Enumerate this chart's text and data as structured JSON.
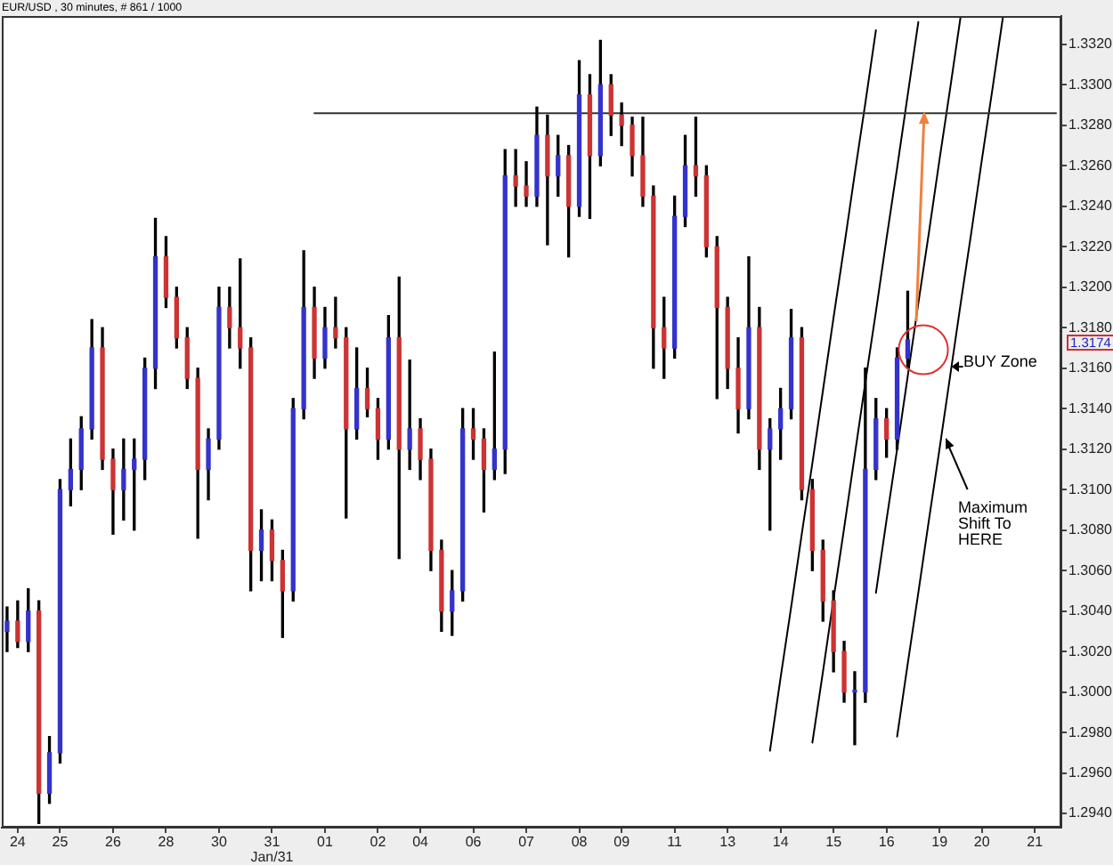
{
  "chart_data": {
    "type": "candlestick",
    "title": "EUR/USD , 30 minutes, # 861 / 1000",
    "annotations": [
      "BUY Zone",
      "Maximum Shift To HERE",
      "1.3174"
    ],
    "categories": [
      null,
      "24",
      null,
      null,
      null,
      "25",
      null,
      null,
      null,
      null,
      "26",
      null,
      null,
      null,
      null,
      "28",
      null,
      null,
      null,
      null,
      "30",
      null,
      null,
      null,
      null,
      "31\nJan/31",
      null,
      null,
      null,
      null,
      "01",
      null,
      null,
      null,
      null,
      "02",
      null,
      null,
      null,
      "04",
      null,
      null,
      null,
      null,
      "06",
      null,
      null,
      null,
      null,
      "07",
      null,
      null,
      null,
      null,
      "08",
      null,
      null,
      null,
      "09",
      null,
      null,
      null,
      null,
      "11",
      null,
      null,
      null,
      null,
      "13",
      null,
      null,
      null,
      null,
      "14",
      null,
      null,
      null,
      null,
      "15",
      null,
      null,
      null,
      null,
      "16",
      null,
      null,
      null,
      null,
      "19",
      null,
      null,
      null,
      "20",
      null,
      null,
      null,
      null,
      "21",
      null,
      null
    ],
    "ylim": [
      1.2933,
      1.3334
    ],
    "yticks": [
      {
        "value": 1.294,
        "label": "1.2940"
      },
      {
        "value": 1.296,
        "label": "1.2960"
      },
      {
        "value": 1.298,
        "label": "1.2980"
      },
      {
        "value": 1.3,
        "label": "1.3000"
      },
      {
        "value": 1.302,
        "label": "1.3020"
      },
      {
        "value": 1.304,
        "label": "1.3040"
      },
      {
        "value": 1.306,
        "label": "1.3060"
      },
      {
        "value": 1.308,
        "label": "1.3080"
      },
      {
        "value": 1.31,
        "label": "1.3100"
      },
      {
        "value": 1.312,
        "label": "1.3120"
      },
      {
        "value": 1.314,
        "label": "1.3140"
      },
      {
        "value": 1.316,
        "label": "1.3160"
      },
      {
        "value": 1.318,
        "label": "1.3180"
      },
      {
        "value": 1.32,
        "label": "1.3200"
      },
      {
        "value": 1.322,
        "label": "1.3220"
      },
      {
        "value": 1.324,
        "label": "1.3240"
      },
      {
        "value": 1.326,
        "label": "1.3260"
      },
      {
        "value": 1.328,
        "label": "1.3280"
      },
      {
        "value": 1.33,
        "label": "1.3300"
      },
      {
        "value": 1.332,
        "label": "1.3320"
      }
    ],
    "grid": false,
    "legend": false,
    "marker": "none",
    "line_style": "solid",
    "series": [
      {
        "color": "#000000",
        "ohlc": [
          [
            1.303,
            1.3042,
            1.302,
            1.3035
          ],
          [
            1.3035,
            1.3045,
            1.3022,
            1.3025
          ],
          [
            1.3025,
            1.3051,
            1.302,
            1.304
          ],
          [
            1.304,
            1.3045,
            1.2935,
            1.295
          ],
          [
            1.295,
            1.2978,
            1.2945,
            1.297
          ],
          [
            1.297,
            1.3105,
            1.2965,
            1.31
          ],
          [
            1.31,
            1.3125,
            1.3092,
            1.311
          ],
          [
            1.311,
            1.3136,
            1.31,
            1.313
          ],
          [
            1.313,
            1.3184,
            1.3125,
            1.317
          ],
          [
            1.317,
            1.318,
            1.311,
            1.3115
          ],
          [
            1.3115,
            1.312,
            1.3078,
            1.31
          ],
          [
            1.31,
            1.3125,
            1.3085,
            1.311
          ],
          [
            1.311,
            1.3125,
            1.308,
            1.3115
          ],
          [
            1.3115,
            1.3165,
            1.3105,
            1.316
          ],
          [
            1.316,
            1.3234,
            1.315,
            1.3215
          ],
          [
            1.3215,
            1.3225,
            1.319,
            1.3195
          ],
          [
            1.3195,
            1.32,
            1.317,
            1.3175
          ],
          [
            1.3175,
            1.318,
            1.315,
            1.3155
          ],
          [
            1.3155,
            1.316,
            1.3076,
            1.311
          ],
          [
            1.311,
            1.313,
            1.3095,
            1.3125
          ],
          [
            1.3125,
            1.32,
            1.312,
            1.319
          ],
          [
            1.319,
            1.32,
            1.317,
            1.318
          ],
          [
            1.318,
            1.3214,
            1.316,
            1.317
          ],
          [
            1.317,
            1.3175,
            1.305,
            1.307
          ],
          [
            1.307,
            1.309,
            1.3055,
            1.308
          ],
          [
            1.308,
            1.3085,
            1.3055,
            1.3065
          ],
          [
            1.3065,
            1.307,
            1.3027,
            1.305
          ],
          [
            1.305,
            1.3145,
            1.3045,
            1.314
          ],
          [
            1.314,
            1.3218,
            1.3135,
            1.319
          ],
          [
            1.319,
            1.32,
            1.3155,
            1.3165
          ],
          [
            1.3165,
            1.319,
            1.316,
            1.318
          ],
          [
            1.318,
            1.3195,
            1.317,
            1.3175
          ],
          [
            1.3175,
            1.318,
            1.3086,
            1.313
          ],
          [
            1.313,
            1.317,
            1.3125,
            1.315
          ],
          [
            1.315,
            1.316,
            1.3136,
            1.314
          ],
          [
            1.314,
            1.3145,
            1.3115,
            1.3125
          ],
          [
            1.3125,
            1.3186,
            1.312,
            1.3175
          ],
          [
            1.3175,
            1.3205,
            1.3066,
            1.312
          ],
          [
            1.312,
            1.3164,
            1.311,
            1.313
          ],
          [
            1.313,
            1.3135,
            1.3105,
            1.3115
          ],
          [
            1.3115,
            1.312,
            1.306,
            1.307
          ],
          [
            1.307,
            1.3075,
            1.303,
            1.304
          ],
          [
            1.304,
            1.306,
            1.3028,
            1.305
          ],
          [
            1.305,
            1.314,
            1.3045,
            1.313
          ],
          [
            1.313,
            1.314,
            1.3115,
            1.3125
          ],
          [
            1.3125,
            1.313,
            1.3089,
            1.311
          ],
          [
            1.311,
            1.3168,
            1.3105,
            1.312
          ],
          [
            1.312,
            1.3268,
            1.3108,
            1.3255
          ],
          [
            1.3255,
            1.3268,
            1.324,
            1.325
          ],
          [
            1.325,
            1.3262,
            1.324,
            1.3245
          ],
          [
            1.3245,
            1.3289,
            1.324,
            1.3275
          ],
          [
            1.3275,
            1.3285,
            1.3221,
            1.3255
          ],
          [
            1.3255,
            1.3275,
            1.3245,
            1.3265
          ],
          [
            1.3265,
            1.327,
            1.3215,
            1.324
          ],
          [
            1.324,
            1.3312,
            1.3235,
            1.3295
          ],
          [
            1.3295,
            1.3305,
            1.3234,
            1.3265
          ],
          [
            1.3265,
            1.3322,
            1.326,
            1.33
          ],
          [
            1.33,
            1.3305,
            1.3275,
            1.3285
          ],
          [
            1.3285,
            1.3291,
            1.327,
            1.328
          ],
          [
            1.328,
            1.3284,
            1.3255,
            1.3265
          ],
          [
            1.3265,
            1.3284,
            1.324,
            1.3245
          ],
          [
            1.3245,
            1.325,
            1.316,
            1.318
          ],
          [
            1.318,
            1.3195,
            1.3155,
            1.317
          ],
          [
            1.317,
            1.3245,
            1.3165,
            1.3235
          ],
          [
            1.3235,
            1.3275,
            1.323,
            1.326
          ],
          [
            1.326,
            1.3284,
            1.3245,
            1.3255
          ],
          [
            1.3255,
            1.326,
            1.3215,
            1.322
          ],
          [
            1.322,
            1.3225,
            1.3145,
            1.319
          ],
          [
            1.319,
            1.3195,
            1.315,
            1.316
          ],
          [
            1.316,
            1.3175,
            1.3128,
            1.314
          ],
          [
            1.314,
            1.3215,
            1.3135,
            1.318
          ],
          [
            1.318,
            1.319,
            1.311,
            1.312
          ],
          [
            1.312,
            1.3135,
            1.308,
            1.313
          ],
          [
            1.313,
            1.315,
            1.3115,
            1.314
          ],
          [
            1.314,
            1.3189,
            1.3135,
            1.3175
          ],
          [
            1.3175,
            1.318,
            1.3095,
            1.31
          ],
          [
            1.31,
            1.3105,
            1.306,
            1.307
          ],
          [
            1.307,
            1.3075,
            1.3035,
            1.3045
          ],
          [
            1.3045,
            1.305,
            1.301,
            1.302
          ],
          [
            1.302,
            1.3025,
            1.2995,
            1.3
          ],
          [
            1.3,
            1.301,
            1.2974,
            1.3
          ],
          [
            1.3,
            1.316,
            1.2995,
            1.311
          ],
          [
            1.311,
            1.3145,
            1.3105,
            1.3135
          ],
          [
            1.3135,
            1.314,
            1.3116,
            1.3125
          ],
          [
            1.3125,
            1.317,
            1.312,
            1.3165
          ],
          [
            1.3165,
            1.3198,
            1.316,
            1.3174
          ],
          null,
          null,
          null,
          null,
          null,
          null,
          null,
          null,
          null,
          null,
          null,
          null,
          null,
          null
        ],
        "colors": [
          "#3333cc",
          "#cc3333",
          "#3333cc",
          "#cc3333",
          "#3333cc",
          "#3333cc",
          "#3333cc",
          "#3333cc",
          "#3333cc",
          "#cc3333",
          "#cc3333",
          "#3333cc",
          "#3333cc",
          "#3333cc",
          "#3333cc",
          "#cc3333",
          "#cc3333",
          "#cc3333",
          "#cc3333",
          "#3333cc",
          "#3333cc",
          "#cc3333",
          "#cc3333",
          "#cc3333",
          "#3333cc",
          "#cc3333",
          "#cc3333",
          "#3333cc",
          "#3333cc",
          "#cc3333",
          "#3333cc",
          "#cc3333",
          "#cc3333",
          "#3333cc",
          "#cc3333",
          "#cc3333",
          "#3333cc",
          "#cc3333",
          "#3333cc",
          "#cc3333",
          "#cc3333",
          "#cc3333",
          "#3333cc",
          "#3333cc",
          "#cc3333",
          "#cc3333",
          "#3333cc",
          "#3333cc",
          "#cc3333",
          "#cc3333",
          "#3333cc",
          "#cc3333",
          "#3333cc",
          "#cc3333",
          "#3333cc",
          "#cc3333",
          "#3333cc",
          "#cc3333",
          "#cc3333",
          "#cc3333",
          "#cc3333",
          "#cc3333",
          "#cc3333",
          "#3333cc",
          "#3333cc",
          "#cc3333",
          "#cc3333",
          "#cc3333",
          "#cc3333",
          "#cc3333",
          "#3333cc",
          "#cc3333",
          "#3333cc",
          "#3333cc",
          "#3333cc",
          "#cc3333",
          "#cc3333",
          "#cc3333",
          "#cc3333",
          "#cc3333",
          "#3333cc",
          "#3333cc",
          "#3333cc",
          "#cc3333",
          "#3333cc",
          "#3333cc",
          null,
          null,
          null,
          null,
          null,
          null,
          null,
          null,
          null,
          null,
          null,
          null,
          null,
          null
        ]
      },
      {
        "type": "line",
        "color": "#333333",
        "values": [
          null,
          null,
          null,
          null,
          null,
          null,
          null,
          null,
          null,
          null,
          null,
          null,
          null,
          null,
          null,
          null,
          null,
          null,
          null,
          null,
          null,
          null,
          null,
          null,
          null,
          null,
          null,
          null,
          null,
          1.3286,
          1.3286,
          1.3286,
          1.3286,
          1.3286,
          1.3286,
          1.3286,
          1.3286,
          1.3286,
          1.3286,
          1.3286,
          1.3286,
          1.3286,
          1.3286,
          1.3286,
          1.3286,
          1.3286,
          1.3286,
          1.3286,
          1.3286,
          1.3286,
          1.3286,
          1.3286,
          1.3286,
          1.3286,
          1.3286,
          1.3286,
          1.3286,
          1.3286,
          1.3286,
          1.3286,
          1.3286,
          1.3286,
          1.3286,
          1.3286,
          1.3286,
          1.3286,
          1.3286,
          1.3286,
          1.3286,
          1.3286,
          1.3286,
          1.3286,
          1.3286,
          1.3286,
          1.3286,
          1.3286,
          1.3286,
          1.3286,
          1.3286,
          1.3286,
          1.3286,
          1.3286,
          1.3286,
          1.3286,
          1.3286,
          1.3286,
          1.3286,
          1.3286,
          1.3286,
          1.3286,
          1.3286,
          1.3286,
          1.3286,
          1.3286,
          1.3286,
          1.3286,
          1.3286,
          1.3286,
          1.3286,
          1.3286
        ]
      },
      {
        "type": "line",
        "color": "#000000",
        "values": [
          null,
          null,
          null,
          null,
          null,
          null,
          null,
          null,
          null,
          null,
          null,
          null,
          null,
          null,
          null,
          null,
          null,
          null,
          null,
          null,
          null,
          null,
          null,
          null,
          null,
          null,
          null,
          null,
          null,
          null,
          null,
          null,
          null,
          null,
          null,
          null,
          null,
          null,
          null,
          null,
          null,
          null,
          null,
          null,
          null,
          null,
          null,
          null,
          null,
          null,
          null,
          null,
          null,
          null,
          null,
          null,
          null,
          null,
          null,
          null,
          null,
          null,
          null,
          null,
          null,
          null,
          null,
          null,
          null,
          null,
          null,
          null,
          1.2971,
          1.3007,
          1.3042,
          1.3078,
          1.3113,
          1.3149,
          1.3185,
          1.322,
          1.3256,
          1.3291,
          1.3327,
          null,
          null,
          null,
          null,
          null,
          null,
          null,
          null,
          null,
          null,
          null,
          null,
          null,
          null,
          null,
          null,
          null
        ]
      },
      {
        "type": "line",
        "color": "#000000",
        "values": [
          null,
          null,
          null,
          null,
          null,
          null,
          null,
          null,
          null,
          null,
          null,
          null,
          null,
          null,
          null,
          null,
          null,
          null,
          null,
          null,
          null,
          null,
          null,
          null,
          null,
          null,
          null,
          null,
          null,
          null,
          null,
          null,
          null,
          null,
          null,
          null,
          null,
          null,
          null,
          null,
          null,
          null,
          null,
          null,
          null,
          null,
          null,
          null,
          null,
          null,
          null,
          null,
          null,
          null,
          null,
          null,
          null,
          null,
          null,
          null,
          null,
          null,
          null,
          null,
          null,
          null,
          null,
          null,
          null,
          null,
          null,
          null,
          null,
          null,
          null,
          null,
          1.2975,
          1.301,
          1.3046,
          1.3081,
          1.3117,
          1.3153,
          1.3188,
          1.3224,
          1.3259,
          1.3295,
          1.3331,
          null,
          null,
          null,
          null,
          null,
          null,
          null,
          null,
          null,
          null,
          null,
          null,
          null
        ]
      },
      {
        "type": "line",
        "color": "#000000",
        "values": [
          null,
          null,
          null,
          null,
          null,
          null,
          null,
          null,
          null,
          null,
          null,
          null,
          null,
          null,
          null,
          null,
          null,
          null,
          null,
          null,
          null,
          null,
          null,
          null,
          null,
          null,
          null,
          null,
          null,
          null,
          null,
          null,
          null,
          null,
          null,
          null,
          null,
          null,
          null,
          null,
          null,
          null,
          null,
          null,
          null,
          null,
          null,
          null,
          null,
          null,
          null,
          null,
          null,
          null,
          null,
          null,
          null,
          null,
          null,
          null,
          null,
          null,
          null,
          null,
          null,
          null,
          null,
          null,
          null,
          null,
          null,
          null,
          null,
          null,
          null,
          null,
          null,
          null,
          null,
          null,
          null,
          null,
          1.3049,
          1.3085,
          1.312,
          1.3156,
          1.3192,
          1.3227,
          1.3263,
          1.3298,
          1.3334,
          null,
          null,
          null,
          null,
          null,
          null,
          null,
          null,
          null
        ]
      },
      {
        "type": "line",
        "color": "#000000",
        "values": [
          null,
          null,
          null,
          null,
          null,
          null,
          null,
          null,
          null,
          null,
          null,
          null,
          null,
          null,
          null,
          null,
          null,
          null,
          null,
          null,
          null,
          null,
          null,
          null,
          null,
          null,
          null,
          null,
          null,
          null,
          null,
          null,
          null,
          null,
          null,
          null,
          null,
          null,
          null,
          null,
          null,
          null,
          null,
          null,
          null,
          null,
          null,
          null,
          null,
          null,
          null,
          null,
          null,
          null,
          null,
          null,
          null,
          null,
          null,
          null,
          null,
          null,
          null,
          null,
          null,
          null,
          null,
          null,
          null,
          null,
          null,
          null,
          null,
          null,
          null,
          null,
          null,
          null,
          null,
          null,
          null,
          null,
          null,
          null,
          1.2978,
          1.3014,
          1.3049,
          1.3085,
          1.312,
          1.3156,
          1.3192,
          1.3227,
          1.3263,
          1.3298,
          1.3334,
          null,
          null,
          null,
          null,
          null
        ]
      }
    ]
  }
}
